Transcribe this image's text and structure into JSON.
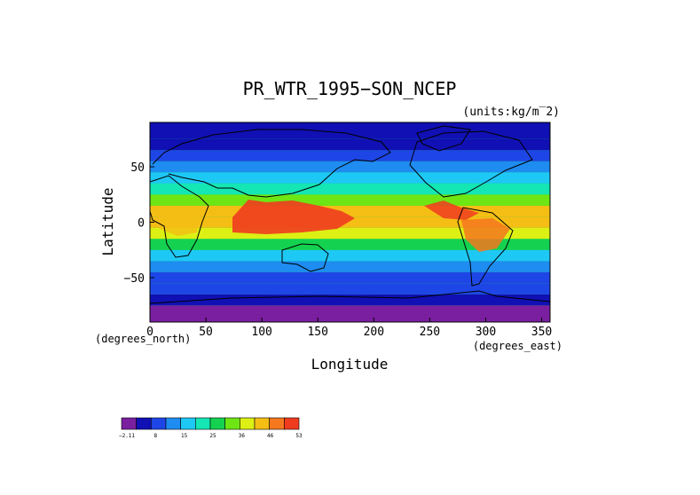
{
  "chart_data": {
    "type": "heatmap",
    "title": "PR_WTR_1995−SON_NCEP",
    "units_label": "(units:kg/m‾2)",
    "xlabel": "Longitude",
    "ylabel": "Latitude",
    "x_unit_label": "(degrees_east)",
    "y_unit_label": "(degrees_north)",
    "xlim": [
      0,
      357.5
    ],
    "ylim": [
      -90,
      90
    ],
    "x_ticks": [
      0,
      50,
      100,
      150,
      200,
      250,
      300,
      350
    ],
    "y_ticks": [
      -50,
      0,
      50
    ],
    "x_tick_labels": [
      "0",
      "50",
      "100",
      "150",
      "200",
      "250",
      "300",
      "350"
    ],
    "y_tick_labels": [
      "−50",
      "0",
      "50"
    ],
    "grid": false,
    "colorbar": {
      "colors": [
        "#7a1fa0",
        "#1010b4",
        "#1e46e6",
        "#1e8cf0",
        "#1ec8f5",
        "#14e6b4",
        "#14d250",
        "#6ee614",
        "#dcf014",
        "#f5be14",
        "#f5781e",
        "#f03c1e"
      ],
      "tick_labels": [
        "−2.11",
        "8",
        "15",
        "25",
        "36",
        "46",
        "53"
      ]
    },
    "zonal_profile": {
      "lat": [
        -90,
        -75,
        -65,
        -55,
        -45,
        -35,
        -25,
        -15,
        -5,
        5,
        15,
        25,
        35,
        45,
        55,
        65,
        75,
        90
      ],
      "value": [
        1,
        3,
        6,
        9,
        13,
        17,
        23,
        32,
        42,
        44,
        36,
        27,
        19,
        14,
        11,
        8,
        5,
        3
      ]
    }
  }
}
